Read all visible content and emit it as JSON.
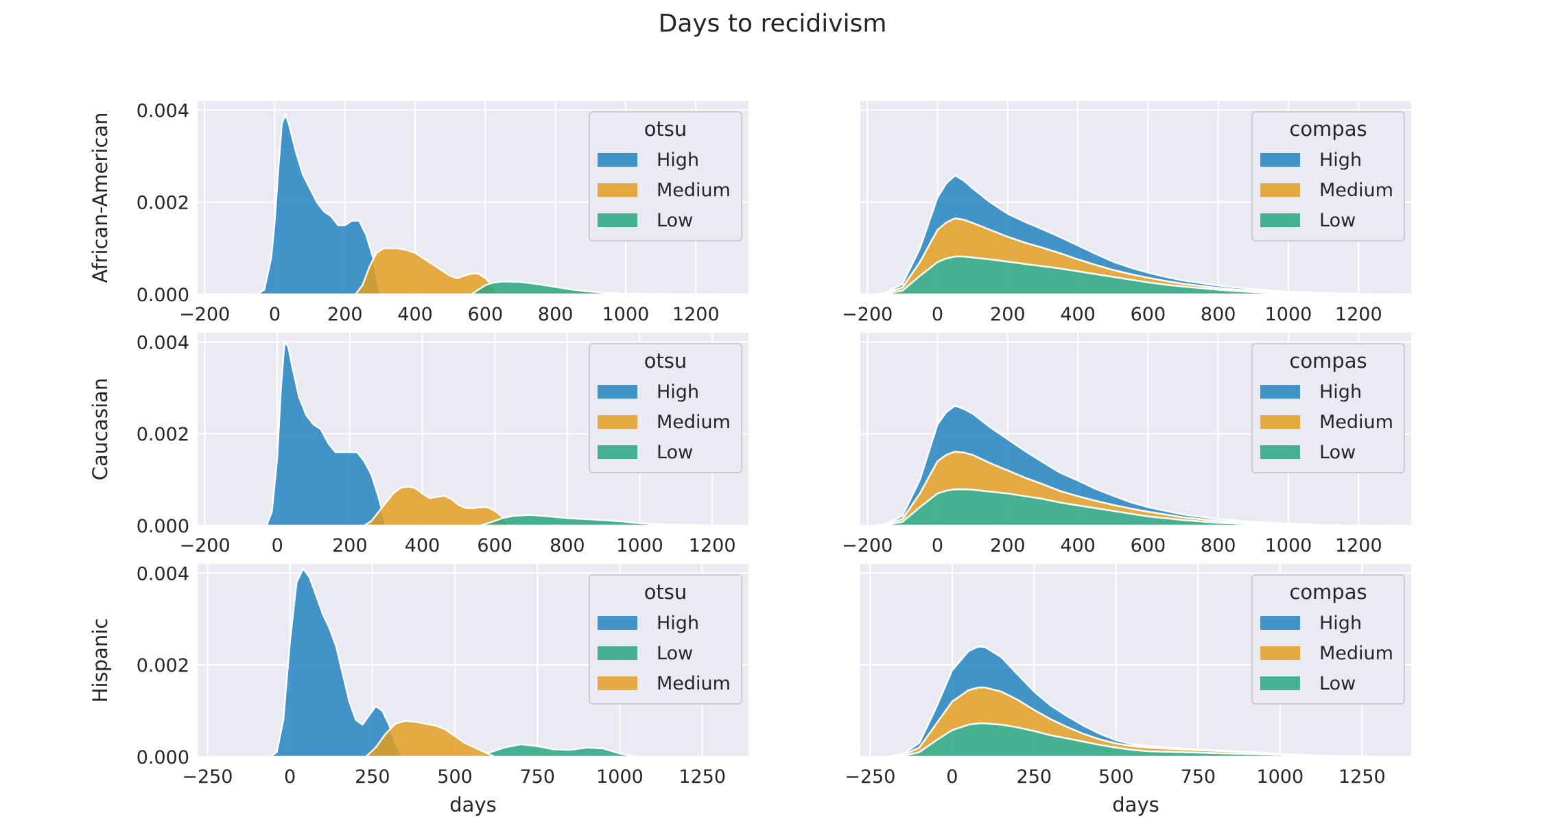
{
  "title": "Days to recidivism",
  "colors": {
    "High": "#2484bf",
    "Medium": "#e39e21",
    "Low": "#28a77f",
    "panel_bg": "#eaeaf2",
    "grid": "#ffffff"
  },
  "chart_data": [
    {
      "type": "area",
      "row_label": "African-American",
      "legend_title": "otsu",
      "legend": [
        "High",
        "Medium",
        "Low"
      ],
      "xlabel": "",
      "xlim": [
        -220,
        1350
      ],
      "ylim": [
        0,
        0.0042
      ],
      "xticks": [
        -200,
        0,
        200,
        400,
        600,
        800,
        1000,
        1200
      ],
      "yticks": [
        0.0,
        0.002,
        0.004
      ],
      "ytick_labels": [
        "0.000",
        "0.002",
        "0.004"
      ],
      "series": [
        {
          "name": "High",
          "x": [
            -50,
            -30,
            -10,
            0,
            10,
            20,
            30,
            40,
            60,
            80,
            100,
            120,
            140,
            160,
            180,
            200,
            220,
            240,
            260,
            280,
            300
          ],
          "y": [
            0,
            0.0001,
            0.0008,
            0.0016,
            0.0027,
            0.0037,
            0.0039,
            0.0037,
            0.0031,
            0.0026,
            0.0023,
            0.002,
            0.0018,
            0.0017,
            0.0015,
            0.0015,
            0.0016,
            0.0016,
            0.0013,
            0.0008,
            0
          ]
        },
        {
          "name": "Medium",
          "x": [
            230,
            250,
            270,
            290,
            310,
            330,
            350,
            380,
            400,
            420,
            440,
            460,
            480,
            500,
            520,
            540,
            560,
            580,
            600,
            620,
            640
          ],
          "y": [
            0,
            0.0002,
            0.0006,
            0.0009,
            0.001,
            0.001,
            0.001,
            0.00095,
            0.0009,
            0.0008,
            0.0007,
            0.0006,
            0.0005,
            0.0004,
            0.00035,
            0.0004,
            0.00045,
            0.00045,
            0.00035,
            0.0002,
            0
          ]
        },
        {
          "name": "Low",
          "x": [
            560,
            580,
            600,
            620,
            650,
            700,
            750,
            800,
            850,
            900,
            950,
            1000,
            1050,
            1100,
            1150,
            1200,
            1250
          ],
          "y": [
            0,
            0.0001,
            0.0002,
            0.00025,
            0.00028,
            0.00027,
            0.00022,
            0.00016,
            0.0001,
            6e-05,
            3e-05,
            2e-05,
            1e-05,
            8e-06,
            5e-06,
            2e-06,
            0
          ]
        }
      ]
    },
    {
      "type": "area",
      "row_label": "",
      "legend_title": "compas",
      "stacked": true,
      "legend": [
        "High",
        "Medium",
        "Low"
      ],
      "xlabel": "",
      "xlim": [
        -220,
        1350
      ],
      "ylim": [
        0,
        0.0042
      ],
      "xticks": [
        -200,
        0,
        200,
        400,
        600,
        800,
        1000,
        1200
      ],
      "yticks": [
        0.0,
        0.002,
        0.004
      ],
      "ytick_labels": [],
      "x": [
        -180,
        -150,
        -100,
        -50,
        0,
        25,
        50,
        75,
        100,
        150,
        200,
        250,
        300,
        350,
        400,
        450,
        500,
        550,
        600,
        650,
        700,
        800,
        900,
        1000,
        1100,
        1200,
        1300
      ],
      "series": [
        {
          "name": "Low",
          "values": [
            0,
            1e-05,
            8e-05,
            0.0004,
            0.0007,
            0.00078,
            0.00082,
            0.00082,
            0.0008,
            0.00076,
            0.00071,
            0.00066,
            0.00061,
            0.00056,
            0.0005,
            0.00044,
            0.00038,
            0.00032,
            0.00026,
            0.00021,
            0.00017,
            0.0001,
            5e-05,
            2e-05,
            1e-05,
            0,
            0
          ]
        },
        {
          "name": "Medium",
          "values": [
            0,
            1e-05,
            7e-05,
            0.0003,
            0.0007,
            0.00078,
            0.00083,
            0.0008,
            0.00075,
            0.00064,
            0.00054,
            0.00046,
            0.0004,
            0.00033,
            0.00026,
            0.0002,
            0.00015,
            0.00012,
            0.0001,
            8e-05,
            6e-05,
            4e-05,
            2e-05,
            1e-05,
            0,
            0,
            0
          ]
        },
        {
          "name": "High",
          "values": [
            0,
            1e-05,
            7e-05,
            0.0003,
            0.0007,
            0.00085,
            0.00093,
            0.00085,
            0.00075,
            0.0006,
            0.0005,
            0.00045,
            0.0004,
            0.00035,
            0.0003,
            0.00024,
            0.00018,
            0.00014,
            0.00011,
            9e-05,
            7e-05,
            5e-05,
            4e-05,
            3e-05,
            2e-05,
            1e-05,
            0
          ]
        }
      ]
    },
    {
      "type": "area",
      "row_label": "Caucasian",
      "legend_title": "otsu",
      "legend": [
        "High",
        "Medium",
        "Low"
      ],
      "xlabel": "",
      "xlim": [
        -220,
        1300
      ],
      "ylim": [
        0,
        0.0042
      ],
      "xticks": [
        -200,
        0,
        200,
        400,
        600,
        800,
        1000,
        1200
      ],
      "yticks": [
        0.0,
        0.002,
        0.004
      ],
      "ytick_labels": [
        "0.000",
        "0.002",
        "0.004"
      ],
      "series": [
        {
          "name": "High",
          "x": [
            -30,
            -15,
            0,
            10,
            20,
            30,
            40,
            60,
            80,
            100,
            120,
            140,
            160,
            180,
            200,
            220,
            240,
            260,
            280,
            300
          ],
          "y": [
            0,
            0.0003,
            0.0015,
            0.003,
            0.004,
            0.0039,
            0.0035,
            0.0028,
            0.0024,
            0.0022,
            0.0021,
            0.0018,
            0.0016,
            0.0016,
            0.0016,
            0.0016,
            0.0014,
            0.0011,
            0.0006,
            0
          ]
        },
        {
          "name": "Medium",
          "x": [
            240,
            260,
            280,
            300,
            320,
            340,
            360,
            380,
            400,
            420,
            440,
            460,
            480,
            500,
            520,
            540,
            560,
            580,
            600,
            620,
            640
          ],
          "y": [
            0,
            0.0001,
            0.0003,
            0.0005,
            0.0007,
            0.00082,
            0.00085,
            0.00082,
            0.0007,
            0.0006,
            0.00062,
            0.00065,
            0.00058,
            0.00045,
            0.00038,
            0.00038,
            0.0004,
            0.0004,
            0.00032,
            0.0002,
            0
          ]
        },
        {
          "name": "Low",
          "x": [
            560,
            580,
            600,
            620,
            650,
            700,
            750,
            800,
            850,
            900,
            950,
            1000,
            1050,
            1100,
            1150,
            1200
          ],
          "y": [
            0,
            5e-05,
            0.0001,
            0.00016,
            0.00021,
            0.00023,
            0.0002,
            0.00016,
            0.00014,
            0.00012,
            9e-05,
            5e-05,
            3e-05,
            2e-05,
            1e-05,
            0
          ]
        }
      ]
    },
    {
      "type": "area",
      "row_label": "",
      "legend_title": "compas",
      "stacked": true,
      "legend": [
        "High",
        "Medium",
        "Low"
      ],
      "xlabel": "",
      "xlim": [
        -220,
        1350
      ],
      "ylim": [
        0,
        0.0042
      ],
      "xticks": [
        -200,
        0,
        200,
        400,
        600,
        800,
        1000,
        1200
      ],
      "yticks": [
        0.0,
        0.002,
        0.004
      ],
      "ytick_labels": [],
      "x": [
        -180,
        -150,
        -100,
        -50,
        0,
        25,
        50,
        75,
        100,
        150,
        200,
        250,
        300,
        350,
        400,
        450,
        500,
        550,
        600,
        650,
        700,
        800,
        900,
        1000,
        1100,
        1200,
        1300
      ],
      "series": [
        {
          "name": "Low",
          "values": [
            0,
            1e-05,
            8e-05,
            0.0004,
            0.0007,
            0.00076,
            0.00079,
            0.00079,
            0.00078,
            0.00074,
            0.0007,
            0.00064,
            0.00058,
            0.0005,
            0.00044,
            0.00038,
            0.00032,
            0.00026,
            0.0002,
            0.00016,
            0.00012,
            6e-05,
            3e-05,
            1e-05,
            0,
            0,
            0
          ]
        },
        {
          "name": "Medium",
          "values": [
            0,
            1e-05,
            6e-05,
            0.0003,
            0.0007,
            0.00078,
            0.00082,
            0.0008,
            0.00076,
            0.00062,
            0.0005,
            0.0004,
            0.00032,
            0.00025,
            0.0002,
            0.00016,
            0.00013,
            0.00011,
            0.0001,
            8e-05,
            6e-05,
            4e-05,
            2e-05,
            1e-05,
            0,
            0,
            0
          ]
        },
        {
          "name": "High",
          "values": [
            0,
            1e-05,
            7e-05,
            0.0003,
            0.0008,
            0.00093,
            0.001,
            0.00095,
            0.0009,
            0.00078,
            0.00068,
            0.00058,
            0.00048,
            0.0004,
            0.00034,
            0.00026,
            0.0002,
            0.00014,
            0.0001,
            8e-05,
            6e-05,
            4e-05,
            3e-05,
            2e-05,
            1e-05,
            0,
            0
          ]
        }
      ]
    },
    {
      "type": "area",
      "row_label": "Hispanic",
      "legend_title": "otsu",
      "legend": [
        "High",
        "Low",
        "Medium"
      ],
      "xlabel": "days",
      "xlim": [
        -280,
        1390
      ],
      "ylim": [
        0,
        0.0042
      ],
      "xticks": [
        -250,
        0,
        250,
        500,
        750,
        1000,
        1250
      ],
      "yticks": [
        0.0,
        0.002,
        0.004
      ],
      "ytick_labels": [
        "0.000",
        "0.002",
        "0.004"
      ],
      "series": [
        {
          "name": "High",
          "x": [
            -60,
            -40,
            -20,
            0,
            20,
            40,
            60,
            80,
            100,
            120,
            140,
            160,
            180,
            200,
            220,
            240,
            260,
            280,
            300,
            320,
            340
          ],
          "y": [
            0,
            0.0001,
            0.0008,
            0.0025,
            0.0038,
            0.0041,
            0.0039,
            0.0035,
            0.0031,
            0.0028,
            0.0024,
            0.0018,
            0.0012,
            0.0008,
            0.0007,
            0.0009,
            0.0011,
            0.001,
            0.0007,
            0.0003,
            0
          ]
        },
        {
          "name": "Low",
          "x": [
            560,
            600,
            650,
            700,
            750,
            800,
            850,
            900,
            950,
            1000,
            1050
          ],
          "y": [
            0,
            8e-05,
            0.0002,
            0.00027,
            0.00023,
            0.00016,
            0.00015,
            0.0002,
            0.00018,
            7e-05,
            0
          ]
        },
        {
          "name": "Medium",
          "x": [
            230,
            260,
            290,
            320,
            350,
            380,
            410,
            440,
            470,
            500,
            530,
            560,
            590,
            620
          ],
          "y": [
            0,
            0.0002,
            0.0005,
            0.00072,
            0.00078,
            0.00076,
            0.00072,
            0.00068,
            0.0006,
            0.00045,
            0.0003,
            0.0002,
            0.0001,
            0
          ]
        }
      ]
    },
    {
      "type": "area",
      "row_label": "",
      "legend_title": "compas",
      "stacked": true,
      "legend": [
        "High",
        "Medium",
        "Low"
      ],
      "xlabel": "days",
      "xlim": [
        -280,
        1400
      ],
      "ylim": [
        0,
        0.0042
      ],
      "xticks": [
        -250,
        0,
        250,
        500,
        750,
        1000,
        1250
      ],
      "yticks": [
        0.0,
        0.002,
        0.004
      ],
      "ytick_labels": [],
      "x": [
        -200,
        -150,
        -100,
        -50,
        0,
        50,
        80,
        100,
        150,
        200,
        250,
        300,
        350,
        400,
        450,
        500,
        550,
        600,
        700,
        800,
        900,
        1000,
        1100,
        1200,
        1300
      ],
      "series": [
        {
          "name": "Low",
          "values": [
            0,
            2e-05,
            0.0001,
            0.00035,
            0.00058,
            0.0007,
            0.00073,
            0.00073,
            0.0007,
            0.00064,
            0.00056,
            0.00047,
            0.0004,
            0.00033,
            0.00026,
            0.0002,
            0.00015,
            0.00012,
            0.0001,
            8e-05,
            6e-05,
            4e-05,
            2e-05,
            1e-05,
            0
          ]
        },
        {
          "name": "Medium",
          "values": [
            0,
            2e-05,
            0.0001,
            0.00035,
            0.00062,
            0.00075,
            0.00078,
            0.00078,
            0.00072,
            0.0006,
            0.00046,
            0.00035,
            0.00025,
            0.00017,
            0.00012,
            9e-05,
            8e-05,
            8e-05,
            6e-05,
            5e-05,
            4e-05,
            2e-05,
            1e-05,
            0,
            0
          ]
        },
        {
          "name": "High",
          "values": [
            0,
            2e-05,
            0.0001,
            0.00035,
            0.00068,
            0.00085,
            0.00089,
            0.00088,
            0.00075,
            0.00055,
            0.0004,
            0.0003,
            0.00024,
            0.00018,
            0.00012,
            7e-05,
            4e-05,
            3e-05,
            2e-05,
            1e-05,
            1e-05,
            0,
            0,
            0,
            0
          ]
        }
      ]
    }
  ]
}
